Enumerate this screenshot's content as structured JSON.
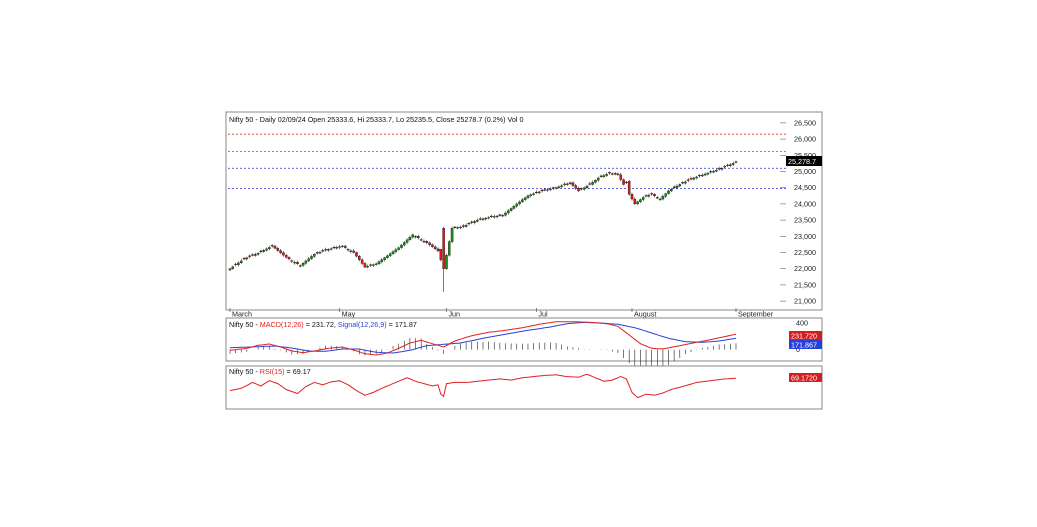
{
  "colors": {
    "up": "#1a8c1a",
    "down": "#d61c1c",
    "wick": "#000000",
    "support_line": "#2d2dd8",
    "resistance_line": "#e03030",
    "macd_line": "#e02020",
    "signal_line": "#2a3fd8",
    "rsi_line": "#e02020",
    "histogram": "#222222",
    "last_price_bg": "#000000",
    "macd_tag_bg": "#d61c1c",
    "signal_tag_bg": "#2a3fd8",
    "rsi_tag_bg": "#d61c1c",
    "panel_border": "#888888"
  },
  "chart_data": [
    {
      "type": "candlestick",
      "title": "Nifty 50 - Daily 02/09/24 Open 25333.6, Hi 25333.7, Lo 25235.5, Close 25278.7 (0.2%) Vol 0",
      "y_ticks": [
        "21,000",
        "21,500",
        "22,000",
        "22,500",
        "23,000",
        "23,500",
        "24,000",
        "24,500",
        "25,000",
        "25,500",
        "26,000",
        "26,500"
      ],
      "ylim": [
        20850,
        26650
      ],
      "x_labels": [
        {
          "label": "March",
          "index": 0
        },
        {
          "label": "May",
          "index": 39
        },
        {
          "label": "Jun",
          "index": 77
        },
        {
          "label": "Jul",
          "index": 109
        },
        {
          "label": "August",
          "index": 143
        },
        {
          "label": "September",
          "index": 180
        }
      ],
      "last_price_label": "25,278.7",
      "horizontal_levels": [
        {
          "value": 26150,
          "style": "resistance"
        },
        {
          "value": 25620,
          "style": "resistance"
        },
        {
          "value": 25100,
          "style": "support"
        },
        {
          "value": 24480,
          "style": "support"
        }
      ],
      "anchors": [
        [
          0,
          22000
        ],
        [
          5,
          22300
        ],
        [
          10,
          22480
        ],
        [
          15,
          22700
        ],
        [
          20,
          22350
        ],
        [
          25,
          22100
        ],
        [
          30,
          22450
        ],
        [
          35,
          22600
        ],
        [
          40,
          22700
        ],
        [
          44,
          22500
        ],
        [
          48,
          22050
        ],
        [
          52,
          22150
        ],
        [
          56,
          22400
        ],
        [
          60,
          22650
        ],
        [
          65,
          23050
        ],
        [
          70,
          22800
        ],
        [
          74,
          22550
        ],
        [
          76,
          22000
        ],
        [
          79,
          23250
        ],
        [
          83,
          23300
        ],
        [
          88,
          23500
        ],
        [
          93,
          23600
        ],
        [
          97,
          23650
        ],
        [
          102,
          24000
        ],
        [
          106,
          24250
        ],
        [
          111,
          24400
        ],
        [
          116,
          24500
        ],
        [
          121,
          24650
        ],
        [
          124,
          24400
        ],
        [
          128,
          24600
        ],
        [
          131,
          24800
        ],
        [
          135,
          24950
        ],
        [
          138,
          24900
        ],
        [
          140,
          24600
        ],
        [
          141,
          24650
        ],
        [
          142,
          24300
        ],
        [
          144,
          24000
        ],
        [
          147,
          24200
        ],
        [
          150,
          24300
        ],
        [
          153,
          24150
        ],
        [
          156,
          24400
        ],
        [
          160,
          24600
        ],
        [
          165,
          24800
        ],
        [
          170,
          24950
        ],
        [
          175,
          25100
        ],
        [
          179,
          25250
        ],
        [
          180,
          25278.7
        ]
      ],
      "pattern": [
        1,
        1,
        -1,
        1,
        1,
        -1,
        1,
        -1,
        -1,
        1,
        1,
        -1,
        1
      ]
    },
    {
      "type": "line",
      "title_prefix": "Nifty 50 - ",
      "series": [
        {
          "name": "MACD(12,26)",
          "value": "231.72"
        },
        {
          "name": "Signal(12,26,9)",
          "value": "171.87"
        }
      ],
      "separator": " = ",
      "separator2": ", ",
      "y_ticks": [
        "400",
        "0"
      ],
      "ylim": [
        -140,
        430
      ],
      "tags": [
        "231.720",
        "171.867"
      ],
      "macd_anchors": [
        [
          0,
          -10
        ],
        [
          6,
          20
        ],
        [
          10,
          65
        ],
        [
          14,
          85
        ],
        [
          18,
          40
        ],
        [
          22,
          -20
        ],
        [
          26,
          -45
        ],
        [
          30,
          -20
        ],
        [
          35,
          20
        ],
        [
          40,
          40
        ],
        [
          44,
          -5
        ],
        [
          48,
          -60
        ],
        [
          52,
          -80
        ],
        [
          56,
          -50
        ],
        [
          60,
          20
        ],
        [
          64,
          100
        ],
        [
          68,
          140
        ],
        [
          72,
          90
        ],
        [
          76,
          40
        ],
        [
          80,
          130
        ],
        [
          86,
          210
        ],
        [
          92,
          260
        ],
        [
          98,
          290
        ],
        [
          104,
          330
        ],
        [
          110,
          380
        ],
        [
          116,
          420
        ],
        [
          122,
          420
        ],
        [
          128,
          410
        ],
        [
          134,
          390
        ],
        [
          138,
          350
        ],
        [
          142,
          220
        ],
        [
          146,
          90
        ],
        [
          150,
          20
        ],
        [
          154,
          10
        ],
        [
          160,
          60
        ],
        [
          166,
          110
        ],
        [
          172,
          160
        ],
        [
          180,
          231.72
        ]
      ],
      "signal_anchors": [
        [
          0,
          30
        ],
        [
          10,
          45
        ],
        [
          16,
          55
        ],
        [
          22,
          25
        ],
        [
          28,
          -20
        ],
        [
          34,
          -25
        ],
        [
          40,
          10
        ],
        [
          46,
          10
        ],
        [
          52,
          -40
        ],
        [
          58,
          -50
        ],
        [
          64,
          -10
        ],
        [
          70,
          60
        ],
        [
          76,
          80
        ],
        [
          82,
          100
        ],
        [
          90,
          170
        ],
        [
          98,
          230
        ],
        [
          106,
          290
        ],
        [
          114,
          340
        ],
        [
          120,
          390
        ],
        [
          126,
          410
        ],
        [
          132,
          400
        ],
        [
          138,
          380
        ],
        [
          144,
          330
        ],
        [
          150,
          250
        ],
        [
          156,
          170
        ],
        [
          162,
          120
        ],
        [
          168,
          110
        ],
        [
          174,
          130
        ],
        [
          180,
          171.87
        ]
      ]
    },
    {
      "type": "line",
      "title_prefix": "Nifty 50 - ",
      "series": [
        {
          "name": "RSI(15)",
          "value": "69.17"
        }
      ],
      "separator": " = ",
      "ylim": [
        20,
        85
      ],
      "tag": "69.1720",
      "rsi_anchors": [
        [
          0,
          48
        ],
        [
          4,
          52
        ],
        [
          8,
          62
        ],
        [
          11,
          56
        ],
        [
          14,
          65
        ],
        [
          17,
          60
        ],
        [
          20,
          50
        ],
        [
          24,
          43
        ],
        [
          27,
          55
        ],
        [
          30,
          62
        ],
        [
          33,
          58
        ],
        [
          36,
          63
        ],
        [
          39,
          65
        ],
        [
          42,
          58
        ],
        [
          45,
          48
        ],
        [
          48,
          40
        ],
        [
          51,
          45
        ],
        [
          54,
          52
        ],
        [
          57,
          58
        ],
        [
          60,
          64
        ],
        [
          63,
          70
        ],
        [
          66,
          64
        ],
        [
          69,
          60
        ],
        [
          72,
          56
        ],
        [
          74,
          58
        ],
        [
          75,
          42
        ],
        [
          76,
          38
        ],
        [
          77,
          60
        ],
        [
          80,
          62
        ],
        [
          84,
          62
        ],
        [
          88,
          64
        ],
        [
          92,
          66
        ],
        [
          96,
          68
        ],
        [
          100,
          66
        ],
        [
          104,
          70
        ],
        [
          108,
          72
        ],
        [
          112,
          74
        ],
        [
          116,
          75
        ],
        [
          120,
          72
        ],
        [
          124,
          71
        ],
        [
          127,
          76
        ],
        [
          130,
          70
        ],
        [
          133,
          64
        ],
        [
          136,
          66
        ],
        [
          139,
          72
        ],
        [
          141,
          68
        ],
        [
          143,
          45
        ],
        [
          145,
          36
        ],
        [
          148,
          42
        ],
        [
          151,
          40
        ],
        [
          154,
          44
        ],
        [
          157,
          50
        ],
        [
          161,
          55
        ],
        [
          166,
          62
        ],
        [
          171,
          65
        ],
        [
          176,
          68
        ],
        [
          180,
          69.17
        ]
      ]
    }
  ]
}
